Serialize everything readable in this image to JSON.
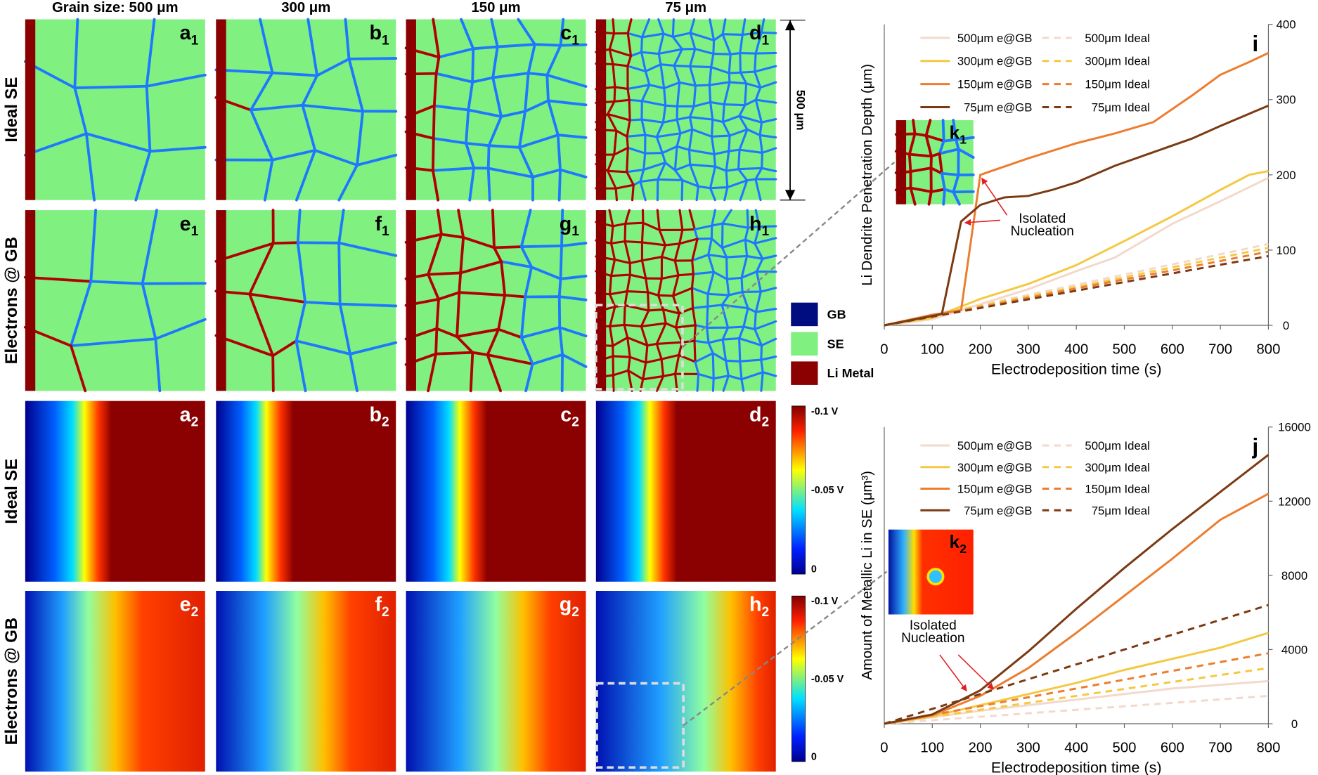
{
  "figure": {
    "column_headers": [
      "Grain size: 500 μm",
      "300 μm",
      "150 μm",
      "75 μm"
    ],
    "row_labels": [
      "Ideal SE",
      "Electrons @ GB",
      "Ideal SE",
      "Electrons @ GB"
    ],
    "panels": [
      [
        {
          "letter": "a",
          "index": "1"
        },
        {
          "letter": "b",
          "index": "1"
        },
        {
          "letter": "c",
          "index": "1"
        },
        {
          "letter": "d",
          "index": "1"
        }
      ],
      [
        {
          "letter": "e",
          "index": "1"
        },
        {
          "letter": "f",
          "index": "1"
        },
        {
          "letter": "g",
          "index": "1"
        },
        {
          "letter": "h",
          "index": "1"
        }
      ],
      [
        {
          "letter": "a",
          "index": "2"
        },
        {
          "letter": "b",
          "index": "2"
        },
        {
          "letter": "c",
          "index": "2"
        },
        {
          "letter": "d",
          "index": "2"
        }
      ],
      [
        {
          "letter": "e",
          "index": "2"
        },
        {
          "letter": "f",
          "index": "2"
        },
        {
          "letter": "g",
          "index": "2"
        },
        {
          "letter": "h",
          "index": "2"
        }
      ]
    ],
    "scale_bar": "500 μm",
    "phase_legend": [
      {
        "name": "GB",
        "color": "#000d80"
      },
      {
        "name": "SE",
        "color": "#80f080"
      },
      {
        "name": "Li Metal",
        "color": "#8b0000"
      }
    ],
    "colorbar_labels": [
      "-0.1 V",
      "-0.05 V",
      "0"
    ],
    "insets": [
      {
        "letter": "k",
        "index": "1"
      },
      {
        "letter": "k",
        "index": "2"
      }
    ]
  },
  "chart_data": [
    {
      "type": "line",
      "label": "i",
      "xlabel": "Electrodeposition time (s)",
      "ylabel": "Li  Dendrite Penetration Depth (μm)",
      "xlim": [
        0,
        800
      ],
      "xticks": [
        0,
        100,
        200,
        300,
        400,
        500,
        600,
        700,
        800
      ],
      "ylim": [
        0,
        400
      ],
      "yticks": [
        0,
        100,
        200,
        300,
        400
      ],
      "ytick_side": "right",
      "annotation": [
        "Isolated",
        "Nucleation"
      ],
      "series": [
        {
          "name": "500μm e@GB",
          "color": "#f2d9cc",
          "dash": false,
          "x": [
            0,
            100,
            200,
            300,
            400,
            480,
            600,
            700,
            800
          ],
          "values": [
            0,
            8,
            28,
            48,
            72,
            90,
            135,
            165,
            196
          ]
        },
        {
          "name": "500μm Ideal",
          "color": "#f2d9cc",
          "dash": true,
          "x": [
            0,
            200,
            400,
            600,
            800
          ],
          "values": [
            0,
            27,
            54,
            81,
            108
          ]
        },
        {
          "name": "300μm e@GB",
          "color": "#f5c842",
          "dash": false,
          "x": [
            0,
            100,
            200,
            300,
            400,
            500,
            600,
            700,
            760,
            800
          ],
          "values": [
            0,
            10,
            35,
            55,
            80,
            112,
            145,
            180,
            200,
            205
          ]
        },
        {
          "name": "300μm Ideal",
          "color": "#f5c842",
          "dash": true,
          "x": [
            0,
            200,
            400,
            600,
            800
          ],
          "values": [
            0,
            26,
            51,
            77,
            103
          ]
        },
        {
          "name": "150μm e@GB",
          "color": "#ec7d2f",
          "dash": false,
          "x": [
            0,
            100,
            160,
            200,
            300,
            400,
            480,
            560,
            640,
            700,
            760,
            800
          ],
          "values": [
            0,
            14,
            20,
            200,
            222,
            242,
            255,
            270,
            305,
            333,
            350,
            362
          ]
        },
        {
          "name": "150μm Ideal",
          "color": "#ec7d2f",
          "dash": true,
          "x": [
            0,
            200,
            400,
            600,
            800
          ],
          "values": [
            0,
            24,
            49,
            73,
            98
          ]
        },
        {
          "name": "75μm e@GB",
          "color": "#7b3a12",
          "dash": false,
          "x": [
            0,
            120,
            160,
            200,
            250,
            300,
            350,
            400,
            480,
            560,
            640,
            700,
            800
          ],
          "values": [
            0,
            15,
            138,
            160,
            170,
            172,
            180,
            190,
            212,
            230,
            248,
            265,
            292
          ]
        },
        {
          "name": "75μm Ideal",
          "color": "#7b3a12",
          "dash": true,
          "x": [
            0,
            200,
            400,
            600,
            800
          ],
          "values": [
            0,
            23,
            46,
            69,
            92
          ]
        }
      ]
    },
    {
      "type": "line",
      "label": "j",
      "xlabel": "Electrodeposition time (s)",
      "ylabel": "Amount of Metallic Li in SE (μm³)",
      "xlim": [
        0,
        800
      ],
      "xticks": [
        0,
        100,
        200,
        300,
        400,
        500,
        600,
        700,
        800
      ],
      "ylim": [
        0,
        16000
      ],
      "yticks": [
        0,
        4000,
        8000,
        12000,
        16000
      ],
      "ytick_side": "right",
      "annotation": [
        "Isolated",
        "Nucleation"
      ],
      "series": [
        {
          "name": "500μm e@GB",
          "color": "#f2d9cc",
          "dash": false,
          "x": [
            0,
            100,
            200,
            300,
            400,
            500,
            600,
            700,
            800
          ],
          "values": [
            0,
            350,
            700,
            1000,
            1300,
            1600,
            1900,
            2100,
            2300
          ]
        },
        {
          "name": "500μm Ideal",
          "color": "#f2d9cc",
          "dash": true,
          "x": [
            0,
            200,
            400,
            600,
            800
          ],
          "values": [
            0,
            375,
            750,
            1125,
            1500
          ]
        },
        {
          "name": "300μm e@GB",
          "color": "#f5c842",
          "dash": false,
          "x": [
            0,
            100,
            200,
            300,
            400,
            500,
            600,
            700,
            800
          ],
          "values": [
            0,
            400,
            1000,
            1600,
            2200,
            2900,
            3500,
            4100,
            4900
          ]
        },
        {
          "name": "300μm Ideal",
          "color": "#f5c842",
          "dash": true,
          "x": [
            0,
            200,
            400,
            600,
            800
          ],
          "values": [
            0,
            750,
            1500,
            2250,
            3000
          ]
        },
        {
          "name": "150μm e@GB",
          "color": "#ec7d2f",
          "dash": false,
          "x": [
            0,
            100,
            200,
            300,
            400,
            500,
            600,
            700,
            800
          ],
          "values": [
            0,
            450,
            1500,
            3000,
            4900,
            6900,
            8900,
            11000,
            12400
          ]
        },
        {
          "name": "150μm Ideal",
          "color": "#ec7d2f",
          "dash": true,
          "x": [
            0,
            200,
            400,
            600,
            800
          ],
          "values": [
            0,
            950,
            1900,
            2850,
            3800
          ]
        },
        {
          "name": "75μm e@GB",
          "color": "#7b3a12",
          "dash": false,
          "x": [
            0,
            100,
            200,
            300,
            400,
            500,
            600,
            700,
            800
          ],
          "values": [
            0,
            500,
            1800,
            3900,
            6200,
            8400,
            10500,
            12500,
            14500
          ]
        },
        {
          "name": "75μm Ideal",
          "color": "#7b3a12",
          "dash": true,
          "x": [
            0,
            200,
            400,
            600,
            800
          ],
          "values": [
            0,
            1600,
            3200,
            4800,
            6400
          ]
        }
      ]
    }
  ]
}
